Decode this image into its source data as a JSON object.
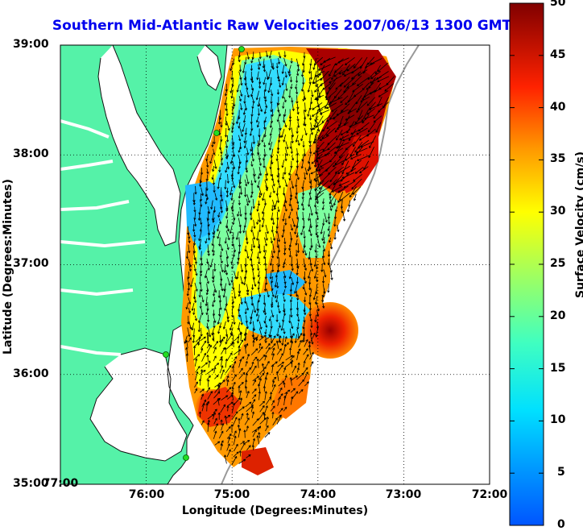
{
  "title": "Southern Mid-Atlantic Raw Velocities 2007/06/13 1300 GMT",
  "axes": {
    "xlabel": "Longitude (Degrees:Minutes)",
    "ylabel": "Latitude (Degrees:Minutes)",
    "x_ticks": [
      "77:00",
      "76:00",
      "75:00",
      "74:00",
      "73:00",
      "72:00"
    ],
    "y_ticks": [
      "39:00",
      "38:00",
      "37:00",
      "36:00",
      "35:00"
    ],
    "grid": "dotted"
  },
  "colorbar": {
    "label": "Surface Velocity (cm/s)",
    "min": 0,
    "max": 50,
    "ticks": [
      "50",
      "45",
      "40",
      "35",
      "30",
      "25",
      "20",
      "15",
      "10",
      "5",
      "0"
    ],
    "colormap": "jet"
  },
  "colors": {
    "land": "#55f2a8",
    "title": "#0000ee",
    "coast_line": "#111111",
    "shelf_line": "#999999",
    "station": "#22dd22"
  },
  "stations": [
    "station-1",
    "station-2",
    "station-3",
    "station-4"
  ]
}
